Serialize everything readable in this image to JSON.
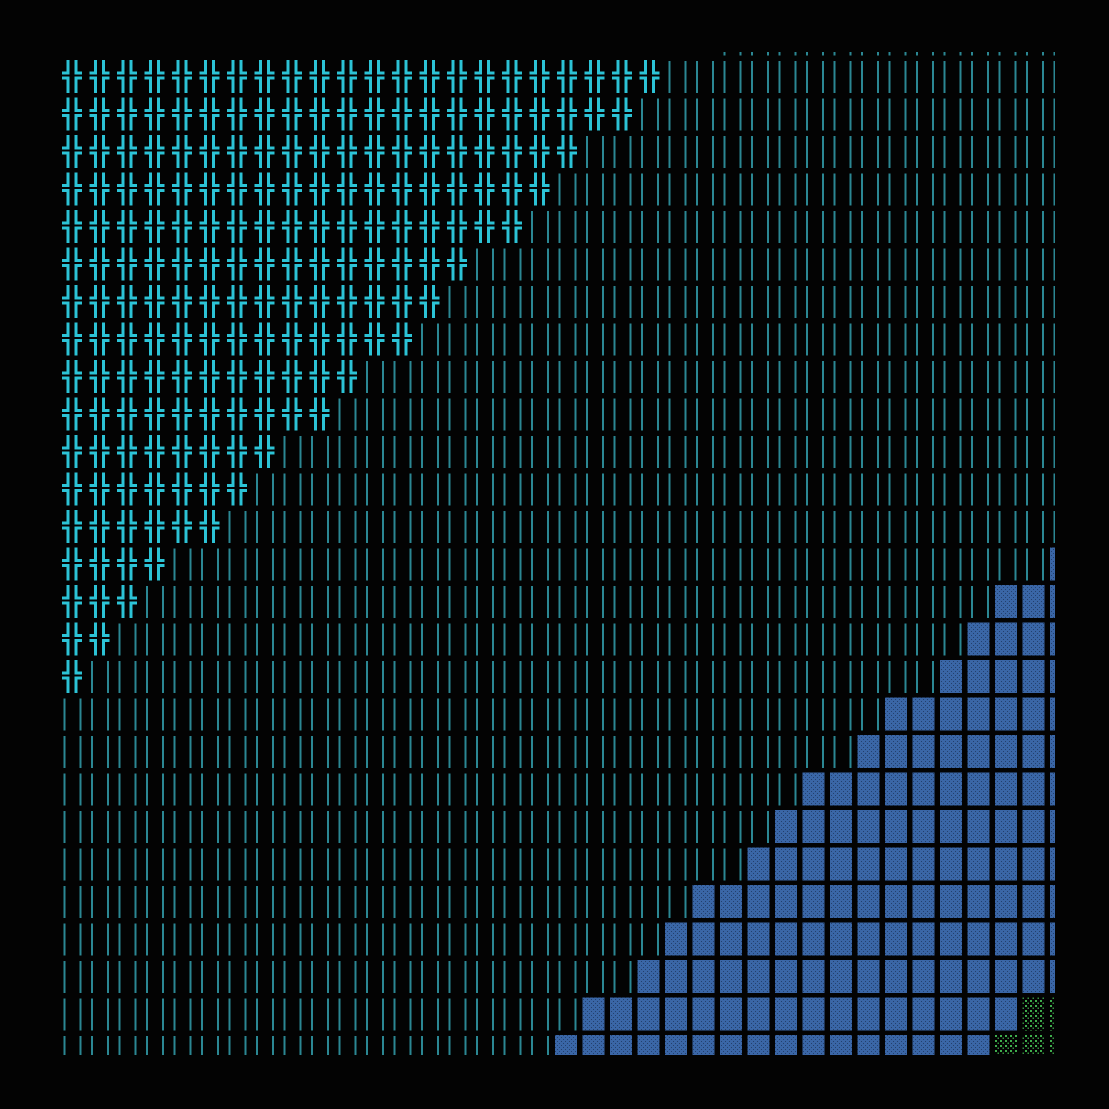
{
  "colors": {
    "background": "#030303",
    "cross": "#2cc3d6",
    "lines": "#2b8793",
    "block": "#3a66a6",
    "block_texture": "#23406e",
    "dots": "#3fae4c"
  },
  "glyph_legend": {
    "C": "double-cross-icon",
    "L": "double-vertical-lines-icon",
    "B": "textured-block-icon",
    "G": "dotted-cell-icon",
    ".": "empty"
  },
  "grid": {
    "columns": 37,
    "rows": [
      [
        [
          ".",
          24
        ],
        [
          "L",
          13
        ]
      ],
      [
        [
          "C",
          22
        ],
        [
          "L",
          15
        ]
      ],
      [
        [
          "C",
          21
        ],
        [
          "L",
          16
        ]
      ],
      [
        [
          "C",
          19
        ],
        [
          "L",
          18
        ]
      ],
      [
        [
          "C",
          18
        ],
        [
          "L",
          19
        ]
      ],
      [
        [
          "C",
          17
        ],
        [
          "L",
          20
        ]
      ],
      [
        [
          "C",
          15
        ],
        [
          "L",
          22
        ]
      ],
      [
        [
          "C",
          14
        ],
        [
          "L",
          23
        ]
      ],
      [
        [
          "C",
          13
        ],
        [
          "L",
          24
        ]
      ],
      [
        [
          "C",
          11
        ],
        [
          "L",
          26
        ]
      ],
      [
        [
          "C",
          10
        ],
        [
          "L",
          27
        ]
      ],
      [
        [
          "C",
          8
        ],
        [
          "L",
          29
        ]
      ],
      [
        [
          "C",
          7
        ],
        [
          "L",
          30
        ]
      ],
      [
        [
          "C",
          6
        ],
        [
          "L",
          31
        ]
      ],
      [
        [
          "C",
          4
        ],
        [
          "L",
          32
        ],
        [
          "B",
          1
        ]
      ],
      [
        [
          "C",
          3
        ],
        [
          "L",
          31
        ],
        [
          "B",
          3
        ]
      ],
      [
        [
          "C",
          2
        ],
        [
          "L",
          31
        ],
        [
          "B",
          4
        ]
      ],
      [
        [
          "C",
          1
        ],
        [
          "L",
          31
        ],
        [
          "B",
          5
        ]
      ],
      [
        [
          "L",
          30
        ],
        [
          "B",
          7
        ]
      ],
      [
        [
          "L",
          29
        ],
        [
          "B",
          8
        ]
      ],
      [
        [
          "L",
          27
        ],
        [
          "B",
          10
        ]
      ],
      [
        [
          "L",
          26
        ],
        [
          "B",
          11
        ]
      ],
      [
        [
          "L",
          25
        ],
        [
          "B",
          12
        ]
      ],
      [
        [
          "L",
          23
        ],
        [
          "B",
          14
        ]
      ],
      [
        [
          "L",
          22
        ],
        [
          "B",
          15
        ]
      ],
      [
        [
          "L",
          21
        ],
        [
          "B",
          16
        ]
      ],
      [
        [
          "L",
          19
        ],
        [
          "B",
          16
        ],
        [
          "G",
          2
        ]
      ],
      [
        [
          "L",
          18
        ],
        [
          "B",
          16
        ],
        [
          "G",
          3
        ]
      ]
    ]
  }
}
